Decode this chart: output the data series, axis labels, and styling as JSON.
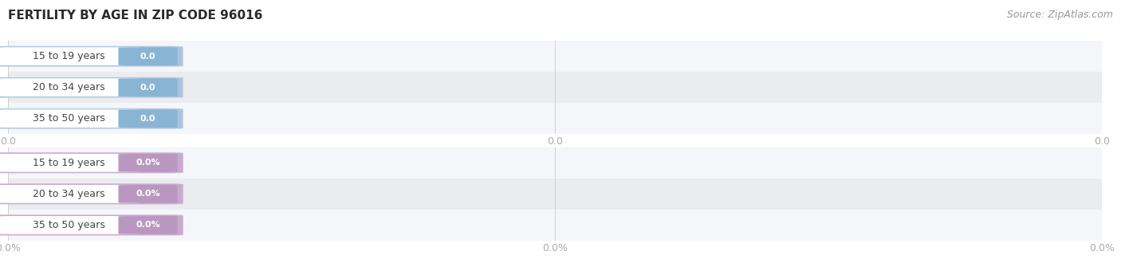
{
  "title": "FERTILITY BY AGE IN ZIP CODE 96016",
  "source_text": "Source: ZipAtlas.com",
  "categories": [
    "15 to 19 years",
    "20 to 34 years",
    "35 to 50 years"
  ],
  "chart1_values": [
    0.0,
    0.0,
    0.0
  ],
  "chart2_values": [
    0.0,
    0.0,
    0.0
  ],
  "chart1_value_labels": [
    "0.0",
    "0.0",
    "0.0"
  ],
  "chart2_value_labels": [
    "0.0%",
    "0.0%",
    "0.0%"
  ],
  "chart1_xtick_labels": [
    "0.0",
    "0.0",
    "0.0"
  ],
  "chart2_xtick_labels": [
    "0.0%",
    "0.0%",
    "0.0%"
  ],
  "chart1_pill_outer": "#a8c4de",
  "chart1_badge_color": "#8ab4d4",
  "chart2_pill_outer": "#c9aacf",
  "chart2_badge_color": "#ba97c0",
  "row_bg_light": "#f4f6f9",
  "row_bg_dark": "#eaecef",
  "title_color": "#2a2a2a",
  "source_color": "#999999",
  "tick_color": "#aaaaaa",
  "cat_text_color": "#444444",
  "val_text_color": "#ffffff",
  "gridline_color": "#d0d0d0",
  "title_fontsize": 11,
  "source_fontsize": 9,
  "cat_fontsize": 9,
  "val_fontsize": 8,
  "tick_fontsize": 9,
  "background": "#ffffff",
  "pill_inner_color": "#ffffff",
  "pill_border_color": "#c8d8e8",
  "pill_border_color2": "#d0b8d8"
}
